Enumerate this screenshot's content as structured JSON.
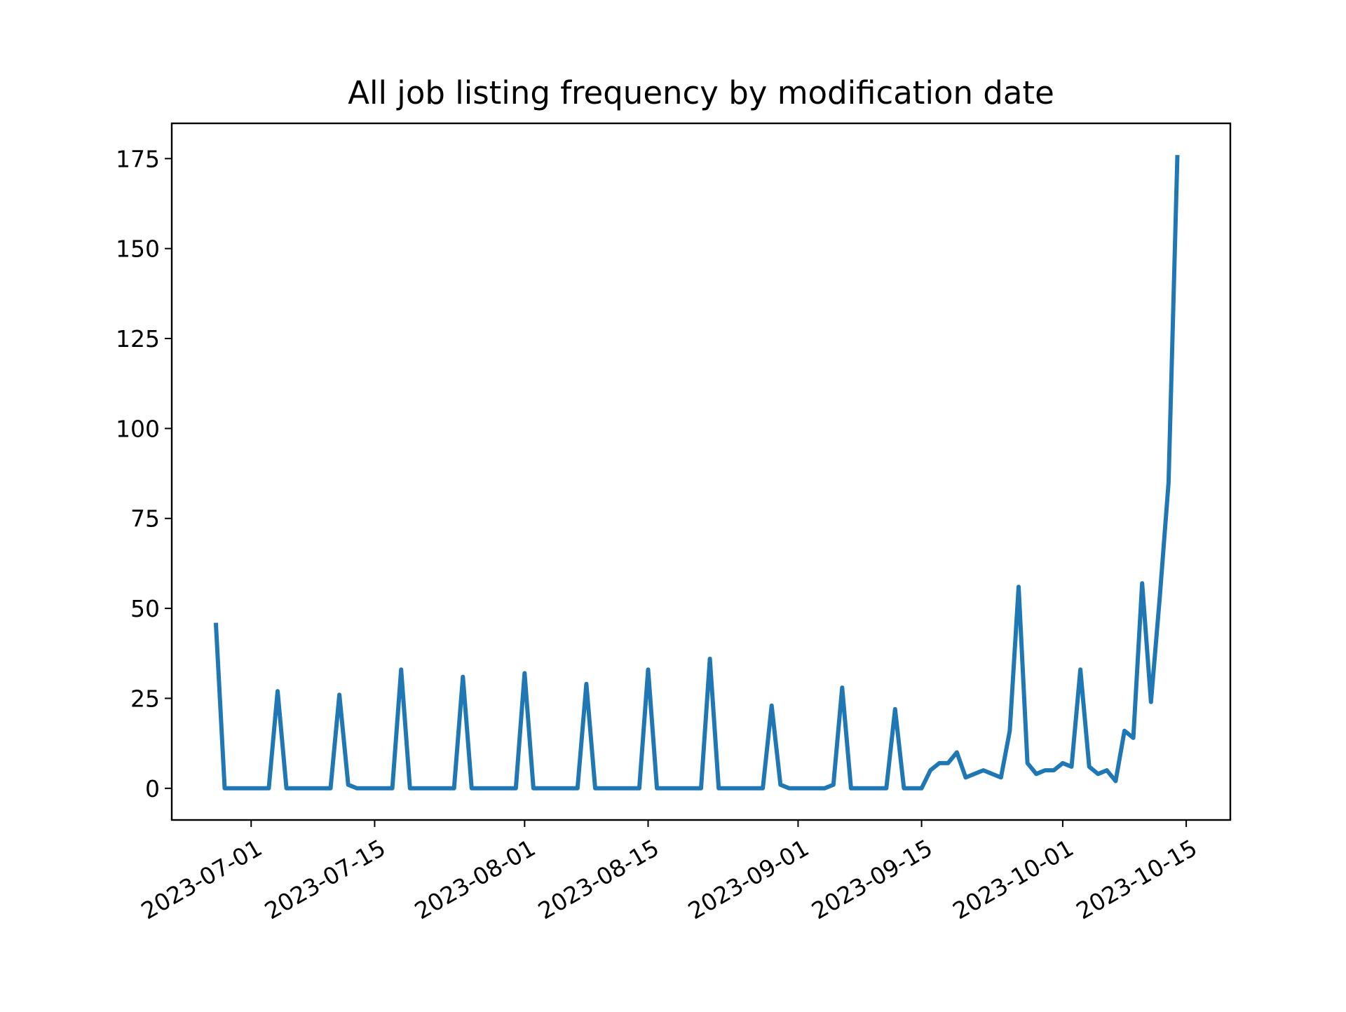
{
  "chart_data": {
    "type": "line",
    "title": "All job listing frequency by modification date",
    "xlabel": "",
    "ylabel": "",
    "x_axis_type": "date",
    "xlim": [
      "2023-06-22",
      "2023-10-20"
    ],
    "ylim": [
      -8.8,
      184.8
    ],
    "x_ticks": [
      "2023-07-01",
      "2023-07-15",
      "2023-08-01",
      "2023-08-15",
      "2023-09-01",
      "2023-09-15",
      "2023-10-01",
      "2023-10-15"
    ],
    "y_ticks": [
      0,
      25,
      50,
      75,
      100,
      125,
      150,
      175
    ],
    "grid": false,
    "legend": "none",
    "series": [
      {
        "color": "#1f77b4",
        "points": [
          [
            "2023-06-27",
            46
          ],
          [
            "2023-06-28",
            0
          ],
          [
            "2023-06-29",
            0
          ],
          [
            "2023-06-30",
            0
          ],
          [
            "2023-07-01",
            0
          ],
          [
            "2023-07-02",
            0
          ],
          [
            "2023-07-03",
            0
          ],
          [
            "2023-07-04",
            27
          ],
          [
            "2023-07-05",
            0
          ],
          [
            "2023-07-06",
            0
          ],
          [
            "2023-07-07",
            0
          ],
          [
            "2023-07-08",
            0
          ],
          [
            "2023-07-09",
            0
          ],
          [
            "2023-07-10",
            0
          ],
          [
            "2023-07-11",
            26
          ],
          [
            "2023-07-12",
            1
          ],
          [
            "2023-07-13",
            0
          ],
          [
            "2023-07-14",
            0
          ],
          [
            "2023-07-15",
            0
          ],
          [
            "2023-07-16",
            0
          ],
          [
            "2023-07-17",
            0
          ],
          [
            "2023-07-18",
            33
          ],
          [
            "2023-07-19",
            0
          ],
          [
            "2023-07-20",
            0
          ],
          [
            "2023-07-21",
            0
          ],
          [
            "2023-07-22",
            0
          ],
          [
            "2023-07-23",
            0
          ],
          [
            "2023-07-24",
            0
          ],
          [
            "2023-07-25",
            31
          ],
          [
            "2023-07-26",
            0
          ],
          [
            "2023-07-27",
            0
          ],
          [
            "2023-07-28",
            0
          ],
          [
            "2023-07-29",
            0
          ],
          [
            "2023-07-30",
            0
          ],
          [
            "2023-07-31",
            0
          ],
          [
            "2023-08-01",
            32
          ],
          [
            "2023-08-02",
            0
          ],
          [
            "2023-08-03",
            0
          ],
          [
            "2023-08-04",
            0
          ],
          [
            "2023-08-05",
            0
          ],
          [
            "2023-08-06",
            0
          ],
          [
            "2023-08-07",
            0
          ],
          [
            "2023-08-08",
            29
          ],
          [
            "2023-08-09",
            0
          ],
          [
            "2023-08-10",
            0
          ],
          [
            "2023-08-11",
            0
          ],
          [
            "2023-08-12",
            0
          ],
          [
            "2023-08-13",
            0
          ],
          [
            "2023-08-14",
            0
          ],
          [
            "2023-08-15",
            33
          ],
          [
            "2023-08-16",
            0
          ],
          [
            "2023-08-17",
            0
          ],
          [
            "2023-08-18",
            0
          ],
          [
            "2023-08-19",
            0
          ],
          [
            "2023-08-20",
            0
          ],
          [
            "2023-08-21",
            0
          ],
          [
            "2023-08-22",
            36
          ],
          [
            "2023-08-23",
            0
          ],
          [
            "2023-08-24",
            0
          ],
          [
            "2023-08-25",
            0
          ],
          [
            "2023-08-26",
            0
          ],
          [
            "2023-08-27",
            0
          ],
          [
            "2023-08-28",
            0
          ],
          [
            "2023-08-29",
            23
          ],
          [
            "2023-08-30",
            1
          ],
          [
            "2023-08-31",
            0
          ],
          [
            "2023-09-01",
            0
          ],
          [
            "2023-09-02",
            0
          ],
          [
            "2023-09-03",
            0
          ],
          [
            "2023-09-04",
            0
          ],
          [
            "2023-09-05",
            1
          ],
          [
            "2023-09-06",
            28
          ],
          [
            "2023-09-07",
            0
          ],
          [
            "2023-09-08",
            0
          ],
          [
            "2023-09-09",
            0
          ],
          [
            "2023-09-10",
            0
          ],
          [
            "2023-09-11",
            0
          ],
          [
            "2023-09-12",
            22
          ],
          [
            "2023-09-13",
            0
          ],
          [
            "2023-09-14",
            0
          ],
          [
            "2023-09-15",
            0
          ],
          [
            "2023-09-16",
            5
          ],
          [
            "2023-09-17",
            7
          ],
          [
            "2023-09-18",
            7
          ],
          [
            "2023-09-19",
            10
          ],
          [
            "2023-09-20",
            3
          ],
          [
            "2023-09-22",
            5
          ],
          [
            "2023-09-24",
            3
          ],
          [
            "2023-09-25",
            16
          ],
          [
            "2023-09-26",
            56
          ],
          [
            "2023-09-27",
            7
          ],
          [
            "2023-09-28",
            4
          ],
          [
            "2023-09-29",
            5
          ],
          [
            "2023-09-30",
            5
          ],
          [
            "2023-10-01",
            7
          ],
          [
            "2023-10-02",
            6
          ],
          [
            "2023-10-03",
            33
          ],
          [
            "2023-10-04",
            6
          ],
          [
            "2023-10-05",
            4
          ],
          [
            "2023-10-06",
            5
          ],
          [
            "2023-10-07",
            2
          ],
          [
            "2023-10-08",
            16
          ],
          [
            "2023-10-09",
            14
          ],
          [
            "2023-10-10",
            57
          ],
          [
            "2023-10-11",
            24
          ],
          [
            "2023-10-12",
            53
          ],
          [
            "2023-10-13",
            85
          ],
          [
            "2023-10-14",
            176
          ]
        ]
      }
    ]
  }
}
